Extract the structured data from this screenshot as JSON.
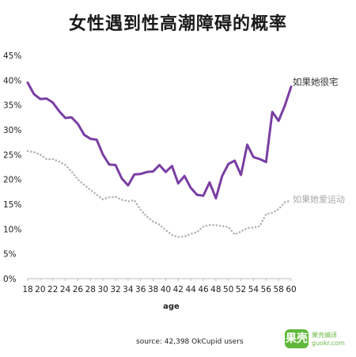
{
  "chart_data": {
    "type": "line",
    "title": "女性遇到性高潮障碍的概率",
    "xlabel": "age",
    "ylabel": "",
    "xlim": [
      18,
      60
    ],
    "ylim": [
      0,
      45
    ],
    "x_ticks": [
      "18",
      "20",
      "22",
      "24",
      "26",
      "28",
      "30",
      "32",
      "34",
      "36",
      "38",
      "40",
      "42",
      "44",
      "46",
      "48",
      "50",
      "52",
      "54",
      "56",
      "58",
      "60"
    ],
    "y_ticks": [
      "0%",
      "5%",
      "10%",
      "15%",
      "20%",
      "25%",
      "30%",
      "35%",
      "40%",
      "45%"
    ],
    "series": [
      {
        "name": "如果她很宅",
        "color": "#7a3ea3",
        "style": "solid",
        "x": [
          18,
          19,
          20,
          21,
          22,
          23,
          24,
          25,
          26,
          27,
          28,
          29,
          30,
          31,
          32,
          33,
          34,
          35,
          36,
          37,
          38,
          39,
          40,
          41,
          42,
          43,
          44,
          45,
          46,
          47,
          48,
          49,
          50,
          51,
          52,
          53,
          54,
          55,
          56,
          57,
          58,
          59,
          60
        ],
        "values": [
          39.5,
          37.2,
          36.2,
          36.3,
          35.5,
          33.8,
          32.4,
          32.5,
          31.2,
          29.0,
          28.2,
          28.0,
          25.0,
          23.0,
          22.9,
          20.2,
          18.8,
          21.0,
          21.1,
          21.5,
          21.6,
          22.9,
          21.5,
          22.7,
          19.2,
          20.7,
          18.3,
          16.9,
          16.7,
          19.4,
          16.2,
          20.7,
          23.1,
          23.8,
          20.9,
          27.0,
          24.5,
          24.1,
          23.5,
          33.6,
          31.8,
          34.9,
          38.7
        ]
      },
      {
        "name": "如果她爱运动",
        "color": "#b5b5b5",
        "style": "dotted",
        "x": [
          18,
          19,
          20,
          21,
          22,
          23,
          24,
          25,
          26,
          27,
          28,
          29,
          30,
          31,
          32,
          33,
          34,
          35,
          36,
          37,
          38,
          39,
          40,
          41,
          42,
          43,
          44,
          45,
          46,
          47,
          48,
          49,
          50,
          51,
          52,
          53,
          54,
          55,
          56,
          57,
          58,
          59,
          60
        ],
        "values": [
          25.7,
          25.5,
          25.0,
          24.1,
          24.1,
          23.6,
          22.9,
          21.6,
          20.0,
          18.9,
          17.9,
          16.9,
          16.0,
          16.4,
          16.5,
          15.9,
          15.6,
          15.8,
          13.9,
          12.5,
          11.5,
          10.9,
          9.8,
          8.8,
          8.4,
          8.5,
          9.0,
          9.4,
          10.5,
          10.8,
          10.8,
          10.6,
          10.4,
          8.9,
          9.5,
          10.2,
          10.3,
          10.6,
          13.0,
          13.3,
          14.0,
          15.4,
          15.7
        ]
      }
    ],
    "grid": false,
    "legend": "inline-right",
    "source": "source: 42,398 OkCupid users"
  },
  "watermark": {
    "badge": "果壳",
    "line1": "果壳编译",
    "line2": "guokr.com"
  }
}
